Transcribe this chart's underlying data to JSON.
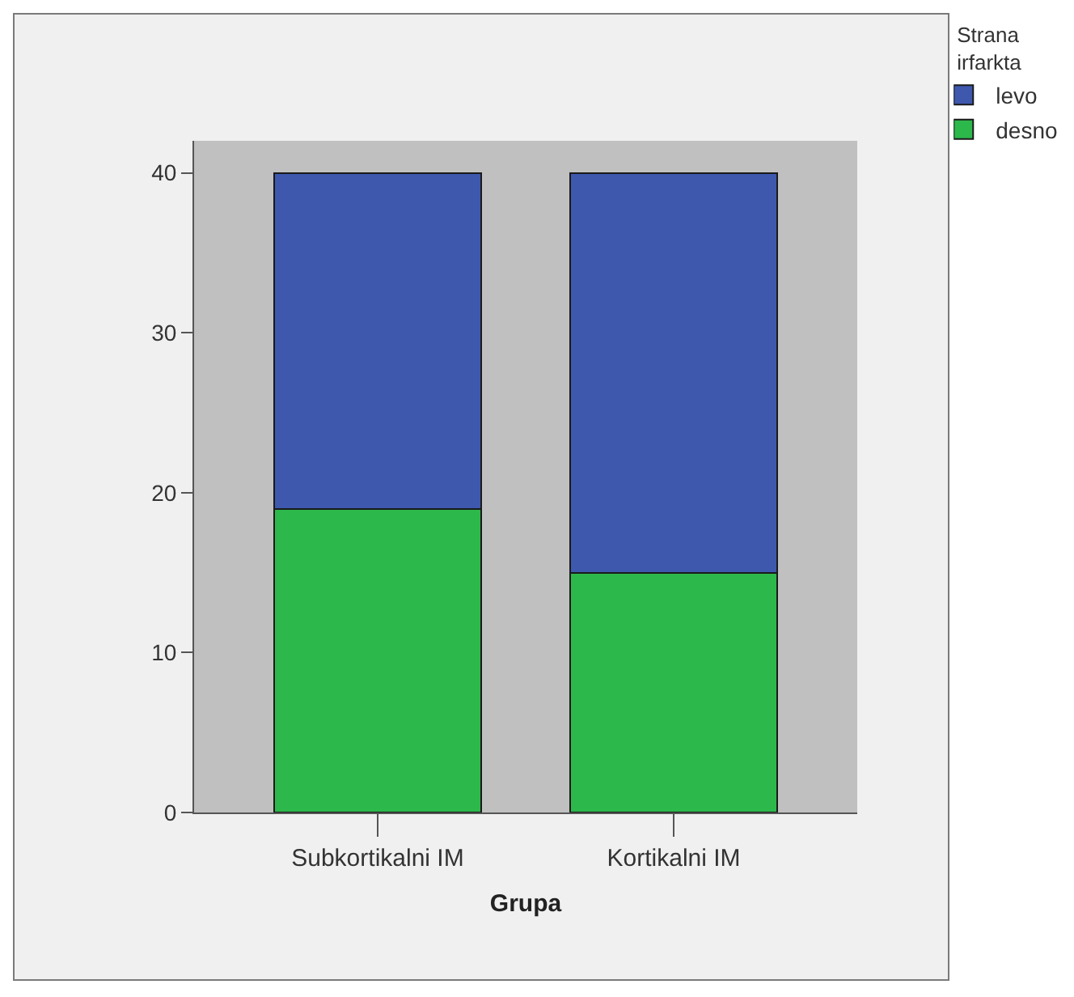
{
  "chart_data": {
    "type": "bar",
    "xlabel": "Grupa",
    "legend_title": "Strana irfarkta",
    "categories": [
      "Subkortikalni IM",
      "Kortikalni IM"
    ],
    "series": [
      {
        "name": "desno",
        "color": "#2db84b",
        "values": [
          19,
          15
        ]
      },
      {
        "name": "levo",
        "color": "#3d58ad",
        "values": [
          21,
          25
        ]
      }
    ],
    "stacked": true,
    "ylim": [
      0,
      42
    ],
    "yticks": [
      0,
      10,
      20,
      30,
      40
    ],
    "grid": false,
    "legend": "top right"
  }
}
